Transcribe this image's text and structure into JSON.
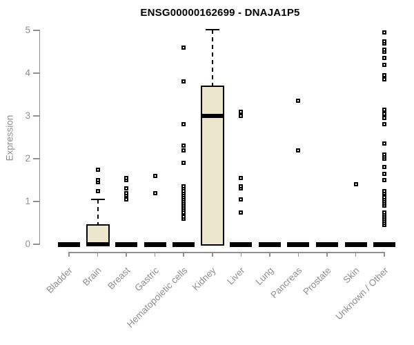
{
  "chart_data": {
    "type": "boxplot",
    "title": "ENSG00000162699 - DNAJA1P5",
    "ylabel": "Expression",
    "xlabel": "",
    "ylim": [
      0,
      5
    ],
    "yticks": [
      0,
      1,
      2,
      3,
      4,
      5
    ],
    "grid": false,
    "legend": "none",
    "categories": [
      "Bladder",
      "Brain",
      "Breast",
      "Gastric",
      "Hematopoietic cells",
      "Kidney",
      "Liver",
      "Lung",
      "Pancreas",
      "Prostate",
      "Skin",
      "Unknown / Other"
    ],
    "boxes": [
      {
        "category": "Bladder",
        "q1": 0,
        "median": 0,
        "q3": 0,
        "whisker_low": 0,
        "whisker_high": 0,
        "outliers": []
      },
      {
        "category": "Brain",
        "q1": 0,
        "median": 0,
        "q3": 0.45,
        "whisker_low": 0,
        "whisker_high": 1.05,
        "outliers": [
          1.25,
          1.45,
          1.5,
          1.75
        ]
      },
      {
        "category": "Breast",
        "q1": 0,
        "median": 0,
        "q3": 0,
        "whisker_low": 0,
        "whisker_high": 0,
        "outliers": [
          1.05,
          1.15,
          1.2,
          1.3,
          1.5,
          1.55
        ]
      },
      {
        "category": "Gastric",
        "q1": 0,
        "median": 0,
        "q3": 0,
        "whisker_low": 0,
        "whisker_high": 0,
        "outliers": [
          1.2,
          1.6
        ]
      },
      {
        "category": "Hematopoietic cells",
        "q1": 0,
        "median": 0,
        "q3": 0,
        "whisker_low": 0,
        "whisker_high": 0,
        "outliers": [
          0.6,
          0.65,
          0.75,
          0.8,
          0.85,
          0.9,
          0.95,
          1.0,
          1.05,
          1.1,
          1.15,
          1.2,
          1.25,
          1.3,
          1.35,
          1.9,
          2.2,
          2.3,
          2.8,
          3.8,
          4.6
        ]
      },
      {
        "category": "Kidney",
        "q1": 0,
        "median": 3.0,
        "q3": 3.7,
        "whisker_low": 0,
        "whisker_high": 5.02,
        "outliers": []
      },
      {
        "category": "Liver",
        "q1": 0,
        "median": 0,
        "q3": 0,
        "whisker_low": 0,
        "whisker_high": 0,
        "outliers": [
          0.75,
          1.05,
          1.3,
          1.35,
          1.55,
          3.0,
          3.1
        ]
      },
      {
        "category": "Lung",
        "q1": 0,
        "median": 0,
        "q3": 0,
        "whisker_low": 0,
        "whisker_high": 0,
        "outliers": []
      },
      {
        "category": "Pancreas",
        "q1": 0,
        "median": 0,
        "q3": 0,
        "whisker_low": 0,
        "whisker_high": 0,
        "outliers": [
          2.2,
          3.35
        ]
      },
      {
        "category": "Prostate",
        "q1": 0,
        "median": 0,
        "q3": 0,
        "whisker_low": 0,
        "whisker_high": 0,
        "outliers": []
      },
      {
        "category": "Skin",
        "q1": 0,
        "median": 0,
        "q3": 0,
        "whisker_low": 0,
        "whisker_high": 0,
        "outliers": [
          1.4
        ]
      },
      {
        "category": "Unknown / Other",
        "q1": 0,
        "median": 0,
        "q3": 0,
        "whisker_low": 0,
        "whisker_high": 0,
        "outliers": [
          0.45,
          0.5,
          0.55,
          0.6,
          0.65,
          0.7,
          0.75,
          0.9,
          0.95,
          1.0,
          1.05,
          1.1,
          1.2,
          1.25,
          1.5,
          1.65,
          1.8,
          2.0,
          2.05,
          2.1,
          2.35,
          2.8,
          2.95,
          3.05,
          3.15,
          3.85,
          3.95,
          4.2,
          4.35,
          4.5,
          4.55,
          4.7,
          4.75,
          4.95
        ]
      }
    ],
    "colors": {
      "box_fill": "#ece7cc",
      "box_border": "#000000",
      "median": "#000000",
      "outlier": "#000000",
      "axis": "#8f8f8f",
      "tick_label": "#8f8f8f",
      "title": "#000000",
      "background": "#ffffff"
    }
  }
}
